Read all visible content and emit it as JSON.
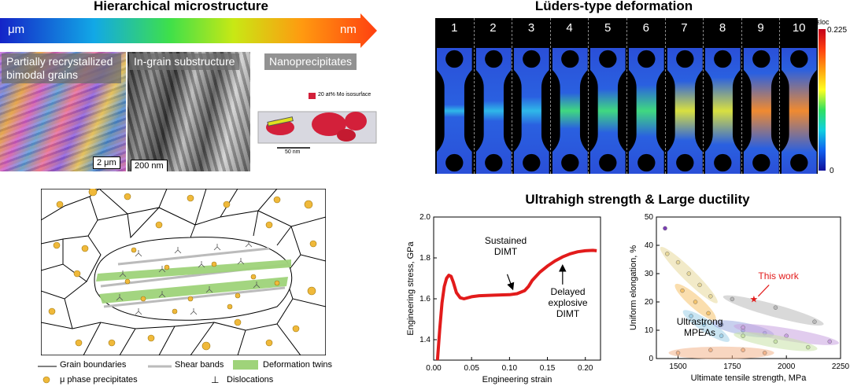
{
  "titles": {
    "hierarchical": "Hierarchical microstructure",
    "luders": "Lüders-type deformation",
    "ultrahigh": "Ultrahigh strength & Large ductility"
  },
  "gradient_arrow": {
    "left_label": "μm",
    "right_label": "nm"
  },
  "micrographs": [
    {
      "label": "Partially recrystallized bimodal grains",
      "scale": "2 μm"
    },
    {
      "label": "In-grain substructure",
      "scale": "200 nm"
    },
    {
      "label": "Nanoprecipitates",
      "scale": "50 nm",
      "iso_legend": "20 at% Mo isosurface"
    }
  ],
  "luders": {
    "frames": [
      "1",
      "2",
      "3",
      "4",
      "5",
      "6",
      "7",
      "8",
      "9",
      "10"
    ],
    "colorbar": {
      "label": "εloc",
      "max": "0.225",
      "min": "0"
    }
  },
  "schematic_legend": {
    "grain_boundaries": "Grain boundaries",
    "shear_bands": "Shear bands",
    "deformation_twins": "Deformation twins",
    "precipitates": "μ phase precipitates",
    "dislocations": "Dislocations",
    "dislocation_symbol": "⊥"
  },
  "chart_data": [
    {
      "type": "line",
      "xlabel": "Engineering strain",
      "ylabel": "Engineering stress, GPa",
      "xlim": [
        0.0,
        0.22
      ],
      "ylim": [
        1.3,
        2.0
      ],
      "xticks": [
        "0.00",
        "0.05",
        "0.10",
        "0.15",
        "0.20"
      ],
      "yticks": [
        "1.4",
        "1.6",
        "1.8",
        "2.0"
      ],
      "series": [
        {
          "color": "#e21b1b",
          "x": [
            0.005,
            0.008,
            0.011,
            0.014,
            0.017,
            0.02,
            0.023,
            0.026,
            0.03,
            0.035,
            0.04,
            0.05,
            0.06,
            0.08,
            0.1,
            0.11,
            0.12,
            0.125,
            0.13,
            0.14,
            0.15,
            0.16,
            0.17,
            0.18,
            0.19,
            0.2,
            0.21,
            0.215
          ],
          "y": [
            1.3,
            1.45,
            1.58,
            1.66,
            1.7,
            1.715,
            1.71,
            1.68,
            1.63,
            1.605,
            1.6,
            1.61,
            1.615,
            1.618,
            1.62,
            1.625,
            1.64,
            1.66,
            1.69,
            1.73,
            1.76,
            1.785,
            1.805,
            1.82,
            1.83,
            1.835,
            1.837,
            1.835
          ]
        }
      ],
      "annotations": [
        {
          "text": "Sustained DIMT",
          "lines": [
            "Sustained",
            "DIMT"
          ]
        },
        {
          "text": "Delayed explosive DIMT",
          "lines": [
            "Delayed",
            "explosive",
            "DIMT"
          ]
        }
      ]
    },
    {
      "type": "scatter",
      "xlabel": "Ultimate tensile strength, MPa",
      "ylabel": "Uniform elongation, %",
      "xlim": [
        1400,
        2250
      ],
      "ylim": [
        0,
        50
      ],
      "xticks": [
        "1500",
        "1750",
        "2000",
        "2250"
      ],
      "yticks": [
        "0",
        "10",
        "20",
        "30",
        "40",
        "50"
      ],
      "annotations": [
        {
          "text": "This work",
          "color": "#e21b1b",
          "x": 1850,
          "y": 21
        },
        {
          "text": "Ultrastrong MPEAs",
          "lines": [
            "Ultrastrong",
            "MPEAs"
          ]
        }
      ],
      "series": [
        {
          "color": "#e8d89a",
          "x": [
            1450,
            1500,
            1550,
            1600,
            1650
          ],
          "y": [
            37,
            34,
            30,
            26,
            22
          ]
        },
        {
          "color": "#f5c36b",
          "x": [
            1520,
            1580,
            1640
          ],
          "y": [
            24,
            20,
            16
          ]
        },
        {
          "color": "#9fd0e8",
          "x": [
            1560,
            1620,
            1700
          ],
          "y": [
            15,
            12,
            8
          ]
        },
        {
          "color": "#9aa9e0",
          "x": [
            1700,
            1800,
            1900
          ],
          "y": [
            12,
            10,
            9
          ]
        },
        {
          "color": "#c9a3e0",
          "x": [
            1800,
            2000,
            2200
          ],
          "y": [
            11,
            8,
            6
          ]
        },
        {
          "color": "#c8e2a8",
          "x": [
            1800,
            1950,
            2100
          ],
          "y": [
            8,
            6,
            4
          ]
        },
        {
          "color": "#b9b9b9",
          "x": [
            1750,
            1950,
            2130
          ],
          "y": [
            21,
            18,
            13
          ]
        },
        {
          "color": "#f2b58c",
          "x": [
            1500,
            1650,
            1800,
            1900
          ],
          "y": [
            2,
            3,
            3,
            2
          ]
        },
        {
          "color": "#7b3fb5",
          "x": [
            1440
          ],
          "y": [
            46
          ]
        },
        {
          "color": "#e21b1b",
          "x": [
            1850
          ],
          "y": [
            21
          ]
        }
      ]
    }
  ]
}
